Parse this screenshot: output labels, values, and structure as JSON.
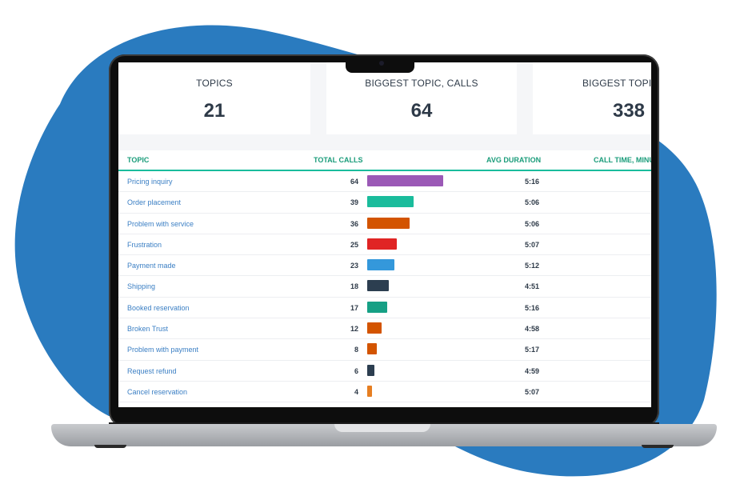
{
  "colors": {
    "blob": "#2a7bbf",
    "header_accent": "#1abc9c",
    "topic_link": "#3b7fc4"
  },
  "cards": [
    {
      "title": "TOPICS",
      "value": "21"
    },
    {
      "title": "BIGGEST TOPIC, CALLS",
      "value": "64"
    },
    {
      "title": "BIGGEST TOPIC, MI",
      "value": "338"
    }
  ],
  "table": {
    "headers": {
      "topic": "TOPIC",
      "total_calls": "TOTAL CALLS",
      "avg_duration": "AVG DURATION",
      "call_time": "CALL TIME, MINU"
    },
    "max_calls": 64,
    "rows": [
      {
        "topic": "Pricing inquiry",
        "calls": "64",
        "calls_value": 64,
        "duration": "5:16",
        "bar_color": "#9b59b6"
      },
      {
        "topic": "Order placement",
        "calls": "39",
        "calls_value": 39,
        "duration": "5:06",
        "bar_color": "#1abc9c"
      },
      {
        "topic": "Problem with service",
        "calls": "36",
        "calls_value": 36,
        "duration": "5:06",
        "bar_color": "#d35400"
      },
      {
        "topic": "Frustration",
        "calls": "25",
        "calls_value": 25,
        "duration": "5:07",
        "bar_color": "#e02424"
      },
      {
        "topic": "Payment made",
        "calls": "23",
        "calls_value": 23,
        "duration": "5:12",
        "bar_color": "#3498db"
      },
      {
        "topic": "Shipping",
        "calls": "18",
        "calls_value": 18,
        "duration": "4:51",
        "bar_color": "#2c3e50"
      },
      {
        "topic": "Booked reservation",
        "calls": "17",
        "calls_value": 17,
        "duration": "5:16",
        "bar_color": "#16a085"
      },
      {
        "topic": "Broken Trust",
        "calls": "12",
        "calls_value": 12,
        "duration": "4:58",
        "bar_color": "#d35400"
      },
      {
        "topic": "Problem with payment",
        "calls": "8",
        "calls_value": 8,
        "duration": "5:17",
        "bar_color": "#d35400"
      },
      {
        "topic": "Request refund",
        "calls": "6",
        "calls_value": 6,
        "duration": "4:59",
        "bar_color": "#2c3e50"
      },
      {
        "topic": "Cancel reservation",
        "calls": "4",
        "calls_value": 4,
        "duration": "5:07",
        "bar_color": "#e67e22"
      }
    ]
  }
}
